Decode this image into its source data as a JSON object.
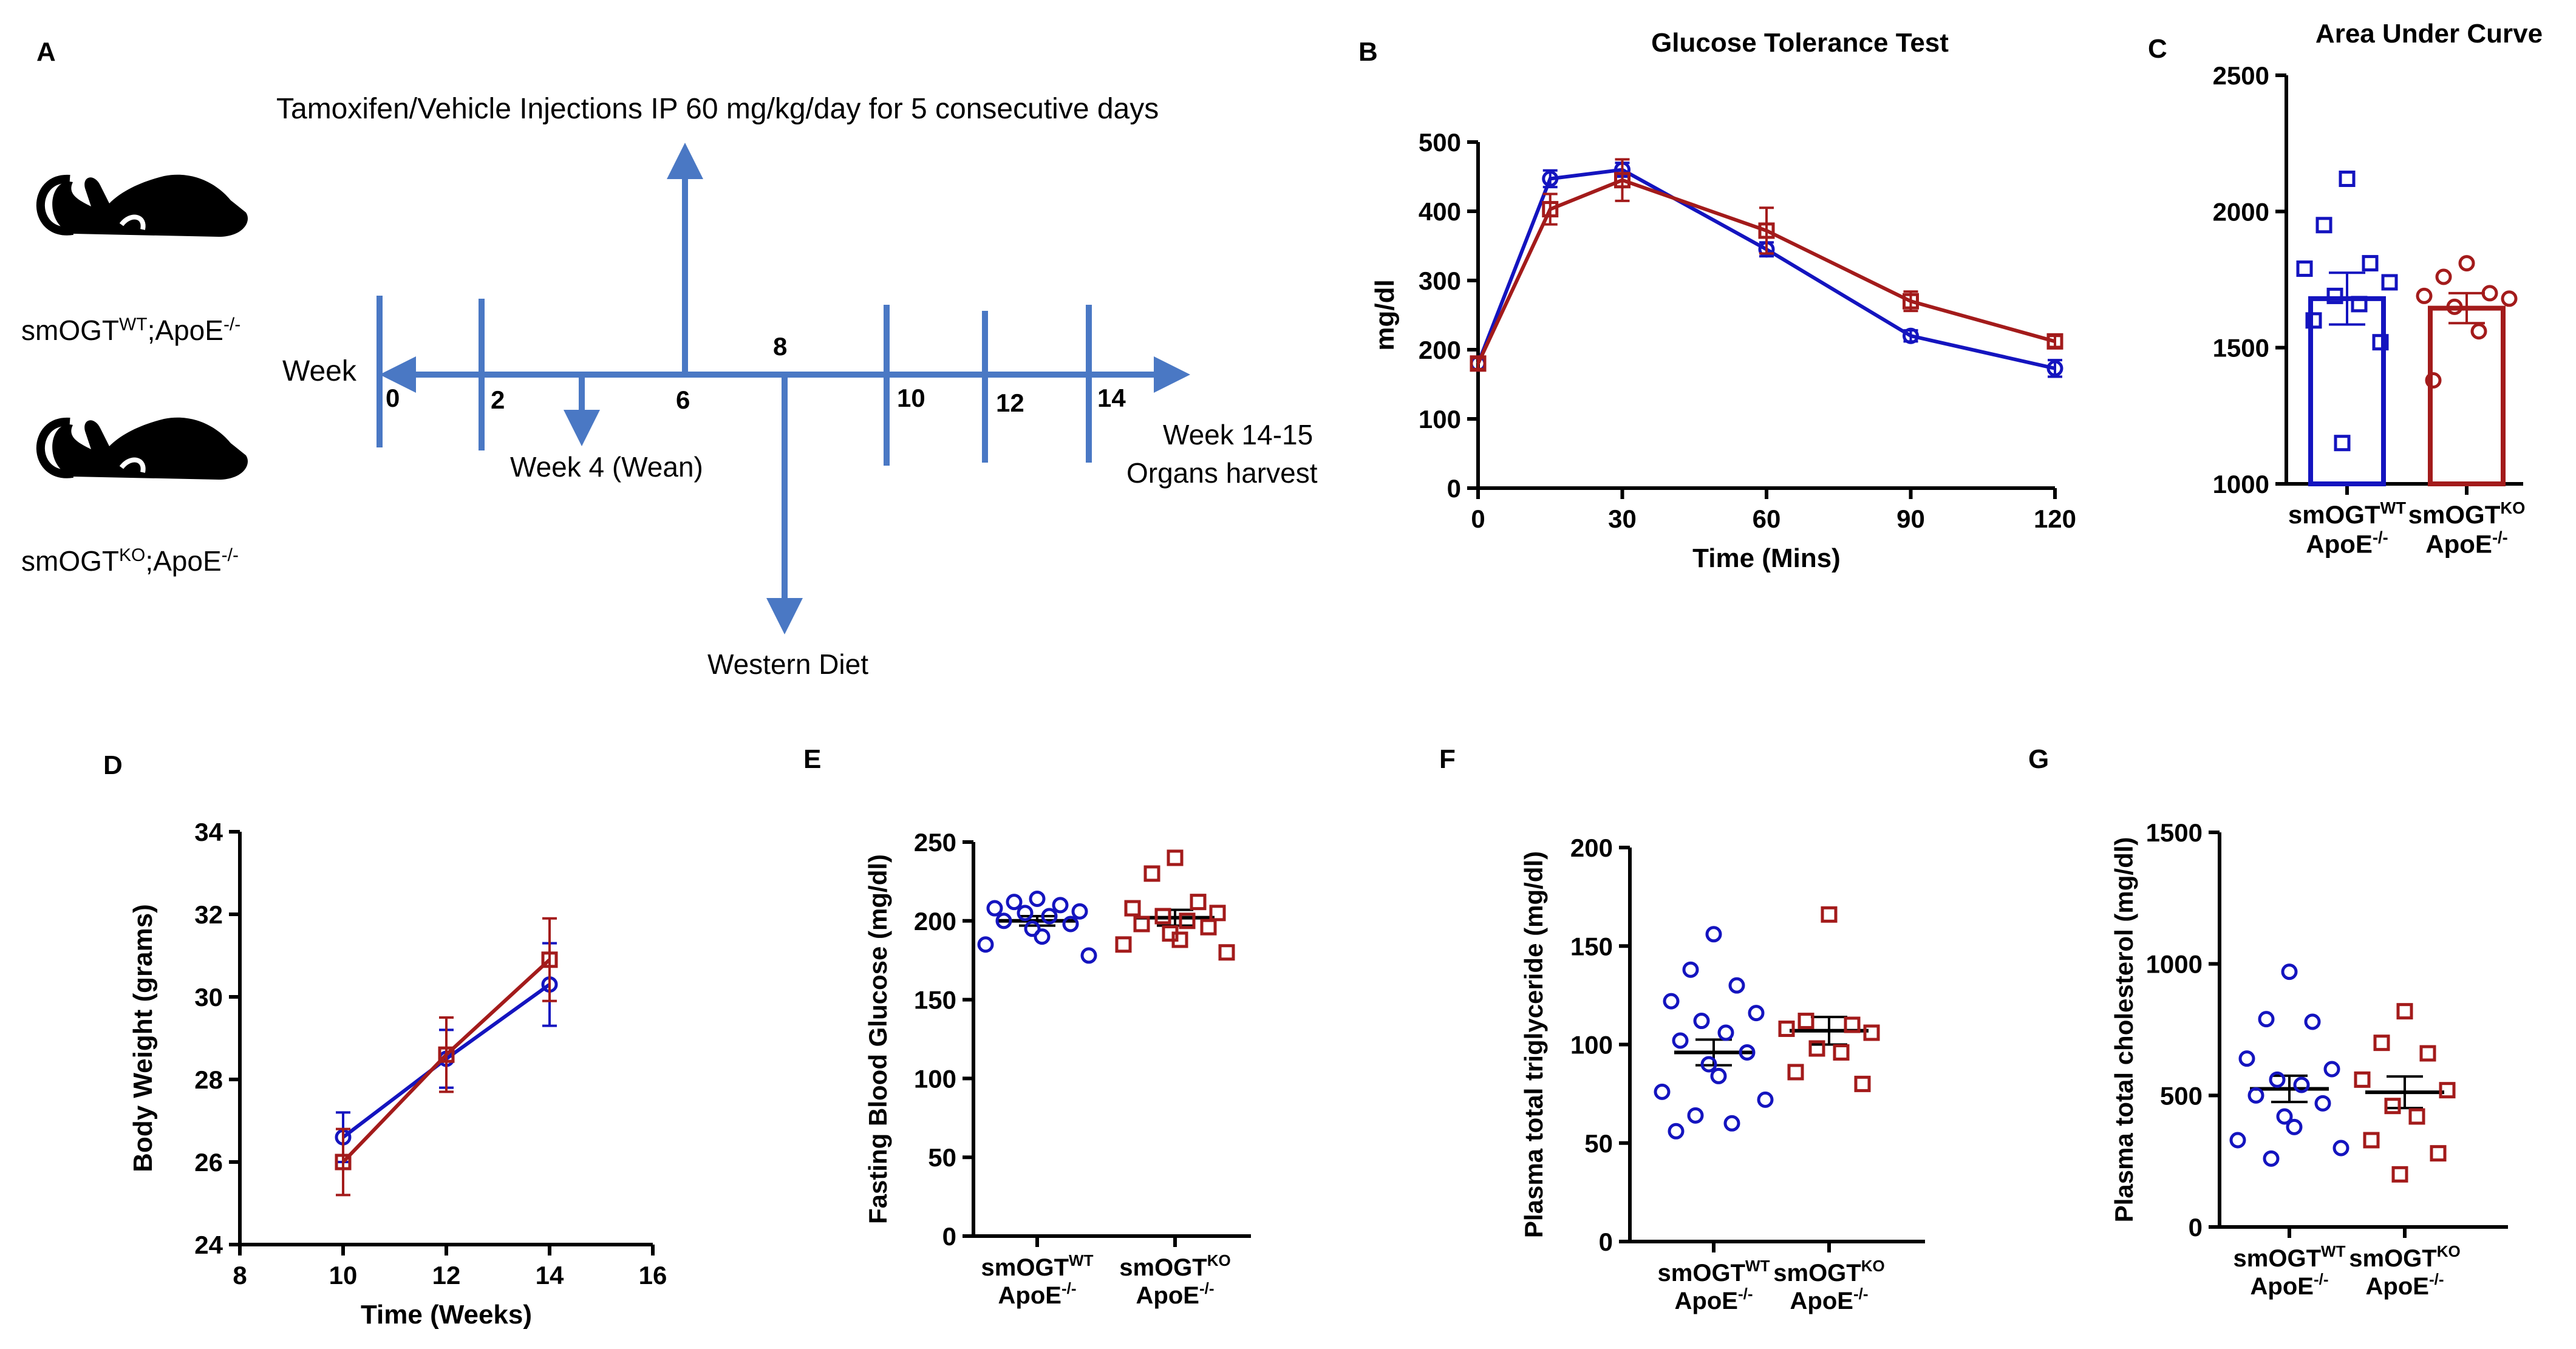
{
  "colors": {
    "wt": "#1414bf",
    "ko": "#a31b1b",
    "timeline": "#4a78c4"
  },
  "panels": {
    "A": {
      "label": "A",
      "injection_text": "Tamoxifen/Vehicle Injections IP 60 mg/kg/day  for 5 consecutive days",
      "week_label": "Week",
      "ticks": [
        "0",
        "2",
        "6",
        "8",
        "10",
        "12",
        "14"
      ],
      "wean_text": "Week 4 (Wean)",
      "diet_text": "Western Diet",
      "harvest_line1": "Week 14-15",
      "harvest_line2": "Organs harvest",
      "mouse_wt": {
        "pre": "smOGT",
        "sup": "WT",
        "post": ";ApoE",
        "post_sup": "-/-"
      },
      "mouse_ko": {
        "pre": "smOGT",
        "sup": "KO",
        "post": ";ApoE",
        "post_sup": "-/-"
      }
    },
    "B": {
      "label": "B"
    },
    "C": {
      "label": "C"
    },
    "D": {
      "label": "D"
    },
    "E": {
      "label": "E"
    },
    "F": {
      "label": "F"
    },
    "G": {
      "label": "G"
    }
  },
  "group_labels": {
    "wt": {
      "pre": "smOGT",
      "sup": "WT",
      "line2": "ApoE",
      "line2_sup": "-/-"
    },
    "ko": {
      "pre": "smOGT",
      "sup": "KO",
      "line2": "ApoE",
      "line2_sup": "-/-"
    }
  },
  "chart_data": [
    {
      "panel": "B",
      "type": "line",
      "title": "Glucose Tolerance Test",
      "xlabel": "Time (Mins)",
      "ylabel": "mg/dl",
      "x": [
        0,
        15,
        30,
        60,
        90,
        120
      ],
      "xticks": [
        0,
        30,
        60,
        90,
        120
      ],
      "yticks": [
        0,
        100,
        200,
        300,
        400,
        500
      ],
      "xlim": [
        0,
        120
      ],
      "ylim": [
        0,
        500
      ],
      "series": [
        {
          "name": "smOGT WT;ApoE-/-",
          "group": "wt",
          "marker": "circle",
          "values": [
            180,
            447,
            460,
            345,
            220,
            173
          ],
          "errors": [
            8,
            12,
            10,
            10,
            8,
            12
          ]
        },
        {
          "name": "smOGT KO;ApoE-/-",
          "group": "ko",
          "marker": "square",
          "values": [
            180,
            403,
            445,
            372,
            270,
            212
          ],
          "errors": [
            8,
            22,
            30,
            33,
            14,
            8
          ]
        }
      ]
    },
    {
      "panel": "C",
      "type": "bar",
      "title": "Area Under Curve",
      "ylabel": "",
      "yticks": [
        1000,
        1500,
        2000,
        2500
      ],
      "ylim": [
        1000,
        2500
      ],
      "groups": [
        {
          "group": "wt",
          "marker": "square",
          "mean": 1680,
          "sem": 95,
          "points": [
            2120,
            1950,
            1810,
            1790,
            1740,
            1690,
            1660,
            1600,
            1520,
            1150
          ]
        },
        {
          "group": "ko",
          "marker": "circle",
          "mean": 1645,
          "sem": 55,
          "points": [
            1810,
            1760,
            1700,
            1690,
            1680,
            1650,
            1560,
            1380
          ]
        }
      ]
    },
    {
      "panel": "D",
      "type": "line",
      "title": "",
      "xlabel": "Time (Weeks)",
      "ylabel": "Body Weight (grams)",
      "x": [
        10,
        12,
        14
      ],
      "xticks": [
        8,
        10,
        12,
        14,
        16
      ],
      "yticks": [
        24,
        26,
        28,
        30,
        32,
        34
      ],
      "xlim": [
        8,
        16
      ],
      "ylim": [
        24,
        34
      ],
      "series": [
        {
          "name": "smOGT WT;ApoE-/-",
          "group": "wt",
          "marker": "circle",
          "values": [
            26.6,
            28.5,
            30.3
          ],
          "errors": [
            0.6,
            0.7,
            1.0
          ]
        },
        {
          "name": "smOGT KO;ApoE-/-",
          "group": "ko",
          "marker": "square",
          "values": [
            26.0,
            28.6,
            30.9
          ],
          "errors": [
            0.8,
            0.9,
            1.0
          ]
        }
      ]
    },
    {
      "panel": "E",
      "type": "scatter",
      "title": "",
      "ylabel": "Fasting Blood Glucose (mg/dl)",
      "yticks": [
        0,
        50,
        100,
        150,
        200,
        250
      ],
      "ylim": [
        0,
        250
      ],
      "groups": [
        {
          "group": "wt",
          "marker": "circle",
          "mean": 200,
          "sem": 3,
          "points": [
            214,
            212,
            210,
            208,
            206,
            205,
            203,
            200,
            198,
            195,
            190,
            185,
            178
          ]
        },
        {
          "group": "ko",
          "marker": "square",
          "mean": 202,
          "sem": 5,
          "points": [
            240,
            230,
            212,
            208,
            205,
            203,
            200,
            198,
            196,
            192,
            188,
            185,
            180
          ]
        }
      ]
    },
    {
      "panel": "F",
      "type": "scatter",
      "title": "",
      "ylabel": "Plasma total triglyceride (mg/dl)",
      "yticks": [
        0,
        50,
        100,
        150,
        200
      ],
      "ylim": [
        0,
        200
      ],
      "groups": [
        {
          "group": "wt",
          "marker": "circle",
          "mean": 96,
          "sem": 6.5,
          "points": [
            156,
            138,
            130,
            122,
            116,
            112,
            106,
            102,
            96,
            90,
            84,
            76,
            72,
            64,
            60,
            56
          ]
        },
        {
          "group": "ko",
          "marker": "square",
          "mean": 107,
          "sem": 7,
          "points": [
            166,
            112,
            110,
            108,
            106,
            98,
            96,
            86,
            80
          ]
        }
      ]
    },
    {
      "panel": "G",
      "type": "scatter",
      "title": "",
      "ylabel": "Plasma total cholesterol (mg/dl)",
      "yticks": [
        0,
        500,
        1000,
        1500
      ],
      "ylim": [
        0,
        1500
      ],
      "groups": [
        {
          "group": "wt",
          "marker": "circle",
          "mean": 525,
          "sem": 50,
          "points": [
            970,
            790,
            780,
            640,
            600,
            560,
            540,
            500,
            470,
            420,
            380,
            330,
            300,
            260
          ]
        },
        {
          "group": "ko",
          "marker": "square",
          "mean": 512,
          "sem": 60,
          "points": [
            820,
            700,
            660,
            560,
            520,
            460,
            420,
            330,
            280,
            200
          ]
        }
      ]
    }
  ]
}
